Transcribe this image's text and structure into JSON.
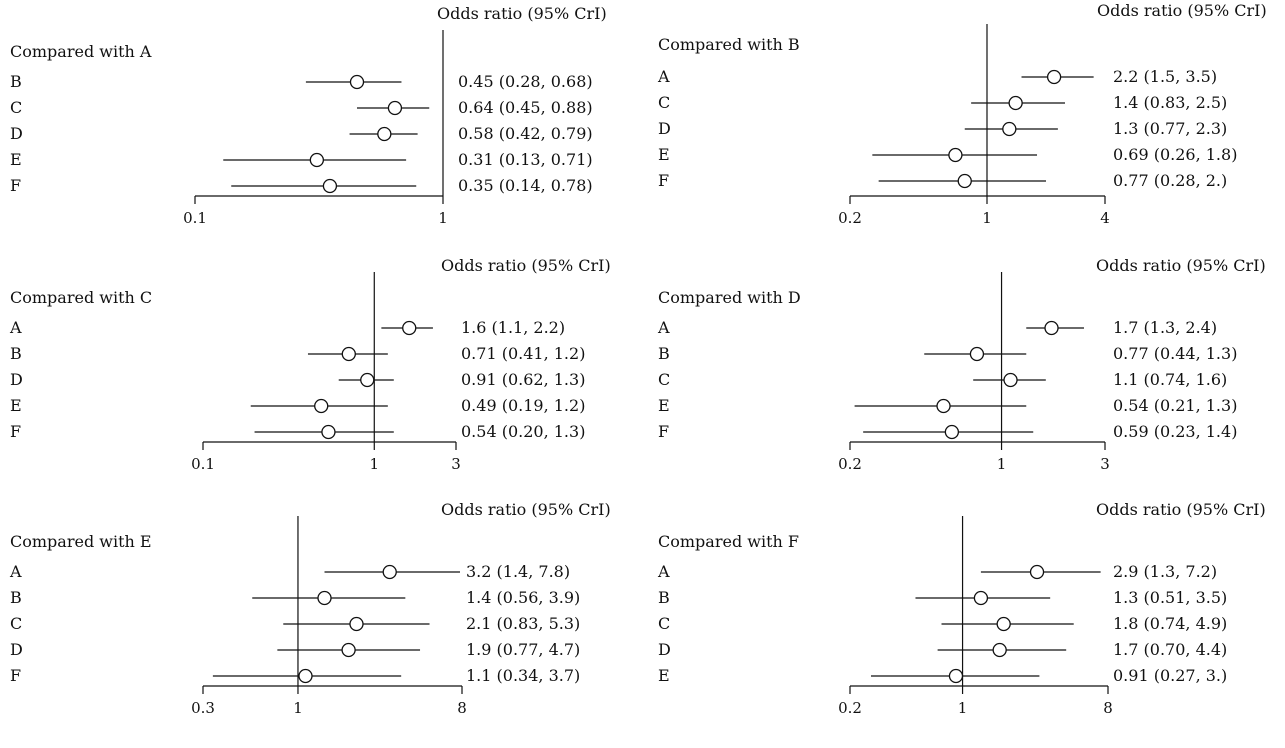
{
  "chart_data": [
    {
      "type": "forest",
      "comparator_label": "Compared with A",
      "header": "Odds ratio (95% CrI)",
      "scale": "log",
      "xlim": [
        0.1,
        1
      ],
      "ticks": [
        {
          "value": 0.1,
          "label": "0.1"
        },
        {
          "value": 1,
          "label": "1"
        }
      ],
      "rows": [
        {
          "label": "B",
          "or": 0.45,
          "lo": 0.28,
          "hi": 0.68,
          "text": "0.45 (0.28, 0.68)"
        },
        {
          "label": "C",
          "or": 0.64,
          "lo": 0.45,
          "hi": 0.88,
          "text": "0.64 (0.45, 0.88)"
        },
        {
          "label": "D",
          "or": 0.58,
          "lo": 0.42,
          "hi": 0.79,
          "text": "0.58 (0.42, 0.79)"
        },
        {
          "label": "E",
          "or": 0.31,
          "lo": 0.13,
          "hi": 0.71,
          "text": "0.31 (0.13, 0.71)"
        },
        {
          "label": "F",
          "or": 0.35,
          "lo": 0.14,
          "hi": 0.78,
          "text": "0.35 (0.14, 0.78)"
        }
      ]
    },
    {
      "type": "forest",
      "comparator_label": "Compared with B",
      "header": "Odds ratio (95% CrI)",
      "scale": "log",
      "xlim": [
        0.2,
        4
      ],
      "ticks": [
        {
          "value": 0.2,
          "label": "0.2"
        },
        {
          "value": 1,
          "label": "1"
        },
        {
          "value": 4,
          "label": "4"
        }
      ],
      "rows": [
        {
          "label": "A",
          "or": 2.2,
          "lo": 1.5,
          "hi": 3.5,
          "text": "2.2 (1.5, 3.5)"
        },
        {
          "label": "C",
          "or": 1.4,
          "lo": 0.83,
          "hi": 2.5,
          "text": "1.4 (0.83, 2.5)"
        },
        {
          "label": "D",
          "or": 1.3,
          "lo": 0.77,
          "hi": 2.3,
          "text": "1.3 (0.77, 2.3)"
        },
        {
          "label": "E",
          "or": 0.69,
          "lo": 0.26,
          "hi": 1.8,
          "text": "0.69 (0.26, 1.8)"
        },
        {
          "label": "F",
          "or": 0.77,
          "lo": 0.28,
          "hi": 2.0,
          "text": "0.77 (0.28, 2.)"
        }
      ]
    },
    {
      "type": "forest",
      "comparator_label": "Compared with C",
      "header": "Odds ratio (95% CrI)",
      "scale": "log",
      "xlim": [
        0.1,
        3
      ],
      "ticks": [
        {
          "value": 0.1,
          "label": "0.1"
        },
        {
          "value": 1,
          "label": "1"
        },
        {
          "value": 3,
          "label": "3"
        }
      ],
      "rows": [
        {
          "label": "A",
          "or": 1.6,
          "lo": 1.1,
          "hi": 2.2,
          "text": "1.6 (1.1, 2.2)"
        },
        {
          "label": "B",
          "or": 0.71,
          "lo": 0.41,
          "hi": 1.2,
          "text": "0.71 (0.41, 1.2)"
        },
        {
          "label": "D",
          "or": 0.91,
          "lo": 0.62,
          "hi": 1.3,
          "text": "0.91 (0.62, 1.3)"
        },
        {
          "label": "E",
          "or": 0.49,
          "lo": 0.19,
          "hi": 1.2,
          "text": "0.49 (0.19, 1.2)"
        },
        {
          "label": "F",
          "or": 0.54,
          "lo": 0.2,
          "hi": 1.3,
          "text": "0.54 (0.20, 1.3)"
        }
      ]
    },
    {
      "type": "forest",
      "comparator_label": "Compared with D",
      "header": "Odds ratio (95% CrI)",
      "scale": "log",
      "xlim": [
        0.2,
        3
      ],
      "ticks": [
        {
          "value": 0.2,
          "label": "0.2"
        },
        {
          "value": 1,
          "label": "1"
        },
        {
          "value": 3,
          "label": "3"
        }
      ],
      "rows": [
        {
          "label": "A",
          "or": 1.7,
          "lo": 1.3,
          "hi": 2.4,
          "text": "1.7 (1.3, 2.4)"
        },
        {
          "label": "B",
          "or": 0.77,
          "lo": 0.44,
          "hi": 1.3,
          "text": "0.77 (0.44, 1.3)"
        },
        {
          "label": "C",
          "or": 1.1,
          "lo": 0.74,
          "hi": 1.6,
          "text": "1.1 (0.74, 1.6)"
        },
        {
          "label": "E",
          "or": 0.54,
          "lo": 0.21,
          "hi": 1.3,
          "text": "0.54 (0.21, 1.3)"
        },
        {
          "label": "F",
          "or": 0.59,
          "lo": 0.23,
          "hi": 1.4,
          "text": "0.59 (0.23, 1.4)"
        }
      ]
    },
    {
      "type": "forest",
      "comparator_label": "Compared with E",
      "header": "Odds ratio (95% CrI)",
      "scale": "log",
      "xlim": [
        0.3,
        8
      ],
      "ticks": [
        {
          "value": 0.3,
          "label": "0.3"
        },
        {
          "value": 1,
          "label": "1"
        },
        {
          "value": 8,
          "label": "8"
        }
      ],
      "rows": [
        {
          "label": "A",
          "or": 3.2,
          "lo": 1.4,
          "hi": 7.8,
          "text": "3.2 (1.4, 7.8)"
        },
        {
          "label": "B",
          "or": 1.4,
          "lo": 0.56,
          "hi": 3.9,
          "text": "1.4 (0.56, 3.9)"
        },
        {
          "label": "C",
          "or": 2.1,
          "lo": 0.83,
          "hi": 5.3,
          "text": "2.1 (0.83, 5.3)"
        },
        {
          "label": "D",
          "or": 1.9,
          "lo": 0.77,
          "hi": 4.7,
          "text": "1.9 (0.77, 4.7)"
        },
        {
          "label": "F",
          "or": 1.1,
          "lo": 0.34,
          "hi": 3.7,
          "text": "1.1 (0.34, 3.7)"
        }
      ]
    },
    {
      "type": "forest",
      "comparator_label": "Compared with F",
      "header": "Odds ratio (95% CrI)",
      "scale": "log",
      "xlim": [
        0.2,
        8
      ],
      "ticks": [
        {
          "value": 0.2,
          "label": "0.2"
        },
        {
          "value": 1,
          "label": "1"
        },
        {
          "value": 8,
          "label": "8"
        }
      ],
      "rows": [
        {
          "label": "A",
          "or": 2.9,
          "lo": 1.3,
          "hi": 7.2,
          "text": "2.9 (1.3, 7.2)"
        },
        {
          "label": "B",
          "or": 1.3,
          "lo": 0.51,
          "hi": 3.5,
          "text": "1.3 (0.51, 3.5)"
        },
        {
          "label": "C",
          "or": 1.8,
          "lo": 0.74,
          "hi": 4.9,
          "text": "1.8 (0.74, 4.9)"
        },
        {
          "label": "D",
          "or": 1.7,
          "lo": 0.7,
          "hi": 4.4,
          "text": "1.7 (0.70, 4.4)"
        },
        {
          "label": "E",
          "or": 0.91,
          "lo": 0.27,
          "hi": 3.0,
          "text": "0.91 (0.27, 3.)"
        }
      ]
    }
  ]
}
